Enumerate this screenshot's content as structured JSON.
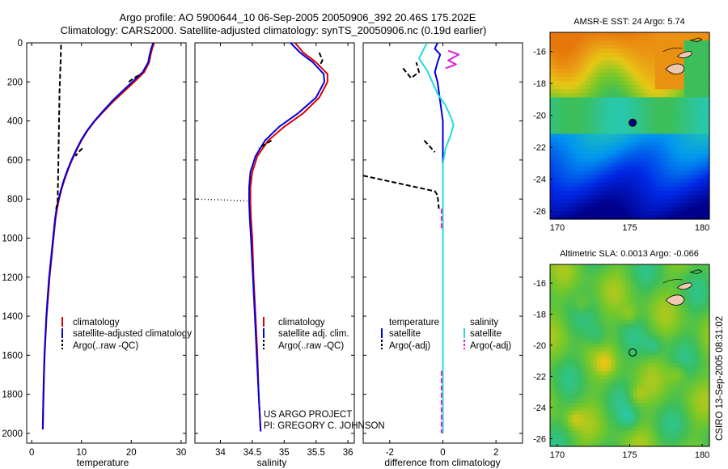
{
  "header": {
    "title_line1": "Argo profile: AO 5900644_10 06-Sep-2005 20050906_392 20.46S 175.202E",
    "title_line2": "Climatology: CARS2000. Satellite-adjusted climatology: synTS_20050906.nc (0.19d earlier)"
  },
  "depth_axis": {
    "range": [
      0,
      2050
    ],
    "ticks": [
      0,
      200,
      400,
      600,
      800,
      1000,
      1200,
      1400,
      1600,
      1800,
      2000
    ]
  },
  "colors": {
    "climatology": "#dd0000",
    "satellite": "#0000dd",
    "argo": "#000000",
    "satellite_salinity": "#22dddd",
    "argo_salinity_adj": "#dd22dd",
    "land": "#f0c8b0"
  },
  "chart_data": [
    {
      "type": "line",
      "title": "",
      "xlabel": "temperature",
      "ylabel": "",
      "xlim": [
        -1,
        31
      ],
      "ylim": [
        2050,
        0
      ],
      "x_ticks": [
        0,
        10,
        20,
        30
      ],
      "legend": {
        "position": "bottom-right",
        "entries": [
          "climatology",
          "satellite-adjusted climatology",
          "Argo(..raw -QC)"
        ]
      },
      "series": [
        {
          "name": "climatology",
          "color": "#dd0000",
          "dash": "",
          "points": [
            [
              24.6,
              0
            ],
            [
              24.2,
              30
            ],
            [
              23.9,
              60
            ],
            [
              23.6,
              100
            ],
            [
              22.6,
              150
            ],
            [
              20.6,
              200
            ],
            [
              18.5,
              250
            ],
            [
              16.4,
              300
            ],
            [
              14.5,
              350
            ],
            [
              12.7,
              400
            ],
            [
              11.2,
              450
            ],
            [
              10.0,
              500
            ],
            [
              9.0,
              550
            ],
            [
              8.1,
              600
            ],
            [
              7.3,
              650
            ],
            [
              6.6,
              700
            ],
            [
              6.0,
              750
            ],
            [
              5.5,
              800
            ],
            [
              5.1,
              850
            ],
            [
              4.8,
              900
            ],
            [
              4.4,
              1000
            ],
            [
              4.0,
              1100
            ],
            [
              3.6,
              1200
            ],
            [
              3.3,
              1300
            ],
            [
              3.0,
              1400
            ],
            [
              2.8,
              1500
            ],
            [
              2.6,
              1600
            ],
            [
              2.5,
              1700
            ],
            [
              2.4,
              1800
            ],
            [
              2.3,
              1900
            ],
            [
              2.25,
              1980
            ]
          ]
        },
        {
          "name": "satellite-adjusted climatology",
          "color": "#0000dd",
          "dash": "",
          "points": [
            [
              24.4,
              0
            ],
            [
              24.0,
              30
            ],
            [
              23.7,
              60
            ],
            [
              23.4,
              100
            ],
            [
              22.3,
              150
            ],
            [
              20.2,
              200
            ],
            [
              18.1,
              250
            ],
            [
              16.1,
              300
            ],
            [
              14.3,
              350
            ],
            [
              12.6,
              400
            ],
            [
              11.1,
              450
            ],
            [
              9.9,
              500
            ],
            [
              8.9,
              550
            ],
            [
              8.0,
              600
            ],
            [
              7.2,
              650
            ],
            [
              6.5,
              700
            ],
            [
              5.9,
              750
            ],
            [
              5.4,
              800
            ],
            [
              5.0,
              850
            ],
            [
              4.7,
              900
            ],
            [
              4.3,
              1000
            ],
            [
              3.9,
              1100
            ],
            [
              3.5,
              1200
            ],
            [
              3.2,
              1300
            ],
            [
              2.95,
              1400
            ],
            [
              2.75,
              1500
            ],
            [
              2.55,
              1600
            ],
            [
              2.45,
              1700
            ],
            [
              2.35,
              1800
            ],
            [
              2.28,
              1900
            ],
            [
              2.22,
              1980
            ]
          ]
        },
        {
          "name": "Argo(..raw -QC)",
          "color": "#000000",
          "dash": "6,3",
          "points": [
            [
              5.9,
              10
            ],
            [
              5.8,
              100
            ],
            [
              5.6,
              250
            ],
            [
              5.5,
              400
            ],
            [
              5.4,
              550
            ],
            [
              5.3,
              700
            ],
            [
              5.2,
              820
            ],
            [
              4.9,
              850
            ]
          ]
        },
        {
          "name": "Argo segment",
          "color": "#000000",
          "dash": "6,3",
          "points": [
            [
              19.5,
              200
            ],
            [
              20.5,
              180
            ],
            [
              22.0,
              160
            ]
          ]
        },
        {
          "name": "Argo segment",
          "color": "#000000",
          "dash": "6,3",
          "points": [
            [
              10.2,
              540
            ],
            [
              9.4,
              560
            ],
            [
              8.8,
              580
            ]
          ]
        }
      ]
    },
    {
      "type": "line",
      "title": "",
      "xlabel": "salinity",
      "ylabel": "",
      "xlim": [
        33.6,
        36.1
      ],
      "ylim": [
        2050,
        0
      ],
      "x_ticks": [
        34,
        34.5,
        35,
        35.5,
        36
      ],
      "legend": {
        "position": "bottom-right",
        "entries": [
          "climatology",
          "satellite adj. clim.",
          "Argo(..raw -QC)"
        ]
      },
      "series": [
        {
          "name": "climatology",
          "color": "#dd0000",
          "dash": "",
          "points": [
            [
              35.17,
              0
            ],
            [
              35.3,
              50
            ],
            [
              35.5,
              100
            ],
            [
              35.68,
              160
            ],
            [
              35.68,
              200
            ],
            [
              35.55,
              280
            ],
            [
              35.3,
              360
            ],
            [
              35.0,
              430
            ],
            [
              34.75,
              500
            ],
            [
              34.58,
              580
            ],
            [
              34.5,
              660
            ],
            [
              34.47,
              740
            ],
            [
              34.47,
              820
            ],
            [
              34.48,
              900
            ],
            [
              34.5,
              1000
            ],
            [
              34.52,
              1200
            ],
            [
              34.55,
              1400
            ],
            [
              34.58,
              1600
            ],
            [
              34.6,
              1800
            ],
            [
              34.63,
              1990
            ]
          ]
        },
        {
          "name": "satellite adj. clim.",
          "color": "#0000dd",
          "dash": "",
          "points": [
            [
              35.1,
              0
            ],
            [
              35.25,
              50
            ],
            [
              35.45,
              100
            ],
            [
              35.62,
              160
            ],
            [
              35.63,
              200
            ],
            [
              35.5,
              280
            ],
            [
              35.22,
              360
            ],
            [
              34.92,
              430
            ],
            [
              34.7,
              500
            ],
            [
              34.55,
              580
            ],
            [
              34.47,
              660
            ],
            [
              34.45,
              740
            ],
            [
              34.45,
              820
            ],
            [
              34.46,
              900
            ],
            [
              34.48,
              1000
            ],
            [
              34.51,
              1200
            ],
            [
              34.54,
              1400
            ],
            [
              34.57,
              1600
            ],
            [
              34.6,
              1800
            ],
            [
              34.63,
              1990
            ]
          ]
        },
        {
          "name": "Argo segment",
          "color": "#000000",
          "dash": "6,3",
          "points": [
            [
              35.55,
              50
            ],
            [
              35.6,
              90
            ],
            [
              35.55,
              120
            ]
          ]
        },
        {
          "name": "Argo segment",
          "color": "#000000",
          "dash": "6,3",
          "points": [
            [
              34.8,
              500
            ],
            [
              34.7,
              520
            ],
            [
              34.6,
              540
            ]
          ]
        },
        {
          "name": "Argo dotted",
          "color": "#000000",
          "dash": "1,3",
          "points": [
            [
              33.65,
              800
            ],
            [
              34.1,
              805
            ],
            [
              34.42,
              810
            ]
          ]
        }
      ]
    },
    {
      "type": "line",
      "title": "",
      "xlabel": "difference from climatology",
      "ylabel": "",
      "xlim": [
        -3.0,
        3.0
      ],
      "ylim": [
        2050,
        0
      ],
      "x_ticks": [
        -2,
        0,
        2
      ],
      "legend": {
        "position": "bottom",
        "temperature_header": "temperature",
        "salinity_header": "salinity",
        "temperature_entries": [
          "satellite",
          "Argo(-adj)"
        ],
        "salinity_entries": [
          "satellite",
          "Argo(-adj)"
        ]
      },
      "series": [
        {
          "name": "satellite (temperature)",
          "color": "#0000dd",
          "dash": "",
          "points": [
            [
              -0.2,
              0
            ],
            [
              -0.3,
              30
            ],
            [
              -0.1,
              60
            ],
            [
              -0.2,
              100
            ],
            [
              -0.3,
              150
            ],
            [
              -0.2,
              200
            ],
            [
              -0.1,
              300
            ],
            [
              0.0,
              400
            ],
            [
              0.0,
              600
            ],
            [
              0.0,
              800
            ],
            [
              0.0,
              1000
            ],
            [
              0.0,
              1400
            ],
            [
              0.0,
              1800
            ],
            [
              0.0,
              2000
            ]
          ]
        },
        {
          "name": "satellite (salinity)",
          "color": "#22dddd",
          "dash": "",
          "points": [
            [
              -0.6,
              0
            ],
            [
              -0.9,
              80
            ],
            [
              -0.6,
              140
            ],
            [
              -0.4,
              200
            ],
            [
              -0.2,
              260
            ],
            [
              0.1,
              320
            ],
            [
              0.3,
              380
            ],
            [
              0.4,
              420
            ],
            [
              0.3,
              470
            ],
            [
              0.1,
              540
            ],
            [
              0.0,
              620
            ],
            [
              0.0,
              700
            ],
            [
              0.0,
              800
            ],
            [
              0.0,
              900
            ],
            [
              0.0,
              1000
            ],
            [
              0.0,
              1200
            ],
            [
              0.0,
              1500
            ],
            [
              0.0,
              1800
            ],
            [
              0.0,
              2000
            ]
          ]
        },
        {
          "name": "Argo(-adj) temperature",
          "color": "#000000",
          "dash": "6,3",
          "points": [
            [
              -3.0,
              680
            ],
            [
              -0.3,
              760
            ],
            [
              -0.2,
              780
            ],
            [
              -0.15,
              850
            ]
          ]
        },
        {
          "name": "Argo(-adj) temperature",
          "color": "#000000",
          "dash": "6,3",
          "points": [
            [
              -1.5,
              130
            ],
            [
              -1.2,
              180
            ],
            [
              -0.9,
              150
            ],
            [
              -1.0,
              100
            ]
          ]
        },
        {
          "name": "Argo(-adj) temperature",
          "color": "#000000",
          "dash": "6,3",
          "points": [
            [
              -0.7,
              500
            ],
            [
              -0.5,
              530
            ],
            [
              -0.3,
              560
            ]
          ]
        },
        {
          "name": "Argo(-adj) salinity",
          "color": "#dd22dd",
          "dash": "",
          "points": [
            [
              0.2,
              40
            ],
            [
              0.6,
              60
            ],
            [
              0.2,
              90
            ],
            [
              0.5,
              110
            ],
            [
              0.1,
              130
            ]
          ]
        },
        {
          "name": "Argo(-adj) salinity",
          "color": "#dd22dd",
          "dash": "6,3",
          "points": [
            [
              -0.05,
              850
            ],
            [
              -0.05,
              950
            ]
          ]
        },
        {
          "name": "Argo(-adj) salinity",
          "color": "#dd22dd",
          "dash": "6,3",
          "points": [
            [
              -0.05,
              1680
            ],
            [
              -0.05,
              1710
            ],
            [
              -0.05,
              1960
            ],
            [
              -0.05,
              2000
            ]
          ]
        }
      ]
    },
    {
      "type": "heatmap",
      "title": "AMSR-E SST: 24 Argo: 5.74",
      "xlabel": "",
      "ylabel": "",
      "xlim": [
        169.5,
        180.5
      ],
      "ylim": [
        -26.5,
        -14.8
      ],
      "x_ticks": [
        170,
        175,
        180
      ],
      "y_ticks": [
        -16,
        -18,
        -20,
        -22,
        -24,
        -26
      ],
      "marker": {
        "lon": 175.202,
        "lat": -20.46,
        "filled": true
      }
    },
    {
      "type": "heatmap",
      "title": "Altimetric SLA: 0.0013 Argo: -0.066",
      "xlabel": "",
      "ylabel": "",
      "xlim": [
        169.5,
        180.5
      ],
      "ylim": [
        -26.5,
        -14.8
      ],
      "x_ticks": [
        170,
        175,
        180
      ],
      "y_ticks": [
        -16,
        -18,
        -20,
        -22,
        -24,
        -26
      ],
      "marker": {
        "lon": 175.202,
        "lat": -20.46,
        "filled": false
      }
    }
  ],
  "annotations": {
    "project_line1": "US ARGO PROJECT",
    "project_line2": "PI: GREGORY C. JOHNSON",
    "timestamp": "CSIRO 13-Sep-2005 08:31:02"
  }
}
